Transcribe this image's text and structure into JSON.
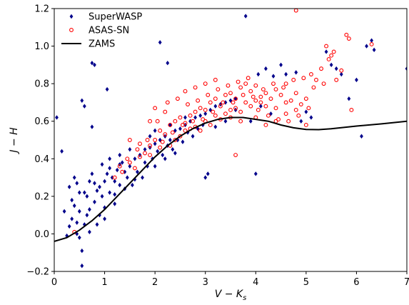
{
  "chart_data": {
    "type": "scatter",
    "title": "",
    "xlabel": "V − K",
    "xlabel_sub": "s",
    "ylabel": "J − H",
    "xlim": [
      0,
      7
    ],
    "ylim": [
      -0.2,
      1.2
    ],
    "grid": false,
    "legend_position": "top-left",
    "x_ticks": [
      0,
      1,
      2,
      3,
      4,
      5,
      6,
      7
    ],
    "x_tick_labels": [
      "0",
      "1",
      "2",
      "3",
      "4",
      "5",
      "6",
      "7"
    ],
    "y_ticks": [
      -0.2,
      0.0,
      0.2,
      0.4,
      0.6,
      0.8,
      1.0,
      1.2
    ],
    "y_tick_labels": [
      "−0.2",
      "0.0",
      "0.2",
      "0.4",
      "0.6",
      "0.8",
      "1.0",
      "1.2"
    ],
    "series": [
      {
        "name": "SuperWASP",
        "marker": "diamond",
        "color": "#00008b",
        "points": [
          [
            0.05,
            0.62
          ],
          [
            0.15,
            0.44
          ],
          [
            0.55,
            0.71
          ],
          [
            0.6,
            0.68
          ],
          [
            0.75,
            0.91
          ],
          [
            0.8,
            0.9
          ],
          [
            0.75,
            0.57
          ],
          [
            0.4,
            0.3
          ],
          [
            0.45,
            0.27
          ],
          [
            0.55,
            -0.17
          ],
          [
            0.45,
            0.0
          ],
          [
            0.2,
            0.12
          ],
          [
            0.3,
            0.25
          ],
          [
            0.35,
            0.18
          ],
          [
            0.5,
            -0.02
          ],
          [
            0.55,
            -0.09
          ],
          [
            0.6,
            0.05
          ],
          [
            0.65,
            0.1
          ],
          [
            0.7,
            0.13
          ],
          [
            0.8,
            0.17
          ],
          [
            0.85,
            0.23
          ],
          [
            0.9,
            0.25
          ],
          [
            1.0,
            0.28
          ],
          [
            1.05,
            0.32
          ],
          [
            1.1,
            0.35
          ],
          [
            1.15,
            0.3
          ],
          [
            1.2,
            0.21
          ],
          [
            1.25,
            0.34
          ],
          [
            1.3,
            0.37
          ],
          [
            1.35,
            0.38
          ],
          [
            1.4,
            0.33
          ],
          [
            1.5,
            0.36
          ],
          [
            1.6,
            0.4
          ],
          [
            1.7,
            0.42
          ],
          [
            1.8,
            0.45
          ],
          [
            1.9,
            0.46
          ],
          [
            2.0,
            0.48
          ],
          [
            2.1,
            0.5
          ],
          [
            2.2,
            0.52
          ],
          [
            2.3,
            0.5
          ],
          [
            2.4,
            0.55
          ],
          [
            2.5,
            0.56
          ],
          [
            2.6,
            0.58
          ],
          [
            2.7,
            0.6
          ],
          [
            2.8,
            0.62
          ],
          [
            2.9,
            0.63
          ],
          [
            3.0,
            0.64
          ],
          [
            3.1,
            0.66
          ],
          [
            3.2,
            0.68
          ],
          [
            3.3,
            0.69
          ],
          [
            3.4,
            0.7
          ],
          [
            3.5,
            0.71
          ],
          [
            3.6,
            0.72
          ],
          [
            3.8,
            1.16
          ],
          [
            3.0,
            0.3
          ],
          [
            3.05,
            0.32
          ],
          [
            4.0,
            0.32
          ],
          [
            4.05,
            0.85
          ],
          [
            4.2,
            0.88
          ],
          [
            4.35,
            0.84
          ],
          [
            4.5,
            0.9
          ],
          [
            4.6,
            0.85
          ],
          [
            4.8,
            0.86
          ],
          [
            4.9,
            0.6
          ],
          [
            5.0,
            0.65
          ],
          [
            5.1,
            0.62
          ],
          [
            5.4,
            0.97
          ],
          [
            5.5,
            0.9
          ],
          [
            5.6,
            0.88
          ],
          [
            5.7,
            0.85
          ],
          [
            5.85,
            0.72
          ],
          [
            6.0,
            0.82
          ],
          [
            6.2,
            1.0
          ],
          [
            6.3,
            1.03
          ],
          [
            6.35,
            0.98
          ],
          [
            6.1,
            0.52
          ],
          [
            7.0,
            0.88
          ],
          [
            1.05,
            0.77
          ],
          [
            2.1,
            1.02
          ],
          [
            2.25,
            0.91
          ],
          [
            0.35,
            0.08
          ],
          [
            0.4,
            0.15
          ],
          [
            0.65,
            0.2
          ],
          [
            0.75,
            0.32
          ],
          [
            0.9,
            0.1
          ],
          [
            0.95,
            0.2
          ],
          [
            1.0,
            0.14
          ],
          [
            1.1,
            0.22
          ],
          [
            1.2,
            0.28
          ],
          [
            1.3,
            0.26
          ],
          [
            1.45,
            0.3
          ],
          [
            1.55,
            0.26
          ],
          [
            1.65,
            0.33
          ],
          [
            1.75,
            0.3
          ],
          [
            1.85,
            0.36
          ],
          [
            1.95,
            0.4
          ],
          [
            2.05,
            0.44
          ],
          [
            2.15,
            0.42
          ],
          [
            2.25,
            0.47
          ],
          [
            2.35,
            0.45
          ],
          [
            2.45,
            0.5
          ],
          [
            2.55,
            0.49
          ],
          [
            2.65,
            0.54
          ],
          [
            2.75,
            0.52
          ],
          [
            2.85,
            0.56
          ],
          [
            2.95,
            0.58
          ],
          [
            3.2,
            0.57
          ],
          [
            3.4,
            0.6
          ],
          [
            1.5,
            0.45
          ],
          [
            1.3,
            0.42
          ],
          [
            1.1,
            0.4
          ],
          [
            0.95,
            0.37
          ],
          [
            0.8,
            0.27
          ],
          [
            0.6,
            0.22
          ],
          [
            0.5,
            0.12
          ],
          [
            0.45,
            0.06
          ],
          [
            0.3,
            0.04
          ],
          [
            0.25,
            -0.01
          ],
          [
            0.5,
            0.22
          ],
          [
            0.7,
            0.28
          ],
          [
            1.9,
            0.52
          ],
          [
            2.0,
            0.55
          ],
          [
            2.3,
            0.58
          ],
          [
            2.6,
            0.62
          ],
          [
            3.6,
            0.66
          ],
          [
            3.9,
            0.6
          ],
          [
            4.1,
            0.68
          ],
          [
            4.3,
            0.64
          ],
          [
            1.2,
            0.16
          ],
          [
            1.4,
            0.24
          ],
          [
            1.6,
            0.29
          ],
          [
            1.8,
            0.38
          ],
          [
            2.0,
            0.36
          ],
          [
            2.2,
            0.4
          ],
          [
            2.4,
            0.43
          ],
          [
            0.85,
            0.05
          ],
          [
            1.0,
            0.08
          ],
          [
            0.7,
            0.01
          ]
        ]
      },
      {
        "name": "ASAS-SN",
        "marker": "open-circle",
        "color": "#ff0000",
        "points": [
          [
            0.4,
            0.01
          ],
          [
            1.2,
            0.3
          ],
          [
            1.35,
            0.33
          ],
          [
            1.5,
            0.38
          ],
          [
            1.6,
            0.35
          ],
          [
            1.7,
            0.41
          ],
          [
            1.8,
            0.43
          ],
          [
            1.9,
            0.47
          ],
          [
            2.0,
            0.5
          ],
          [
            2.05,
            0.6
          ],
          [
            2.1,
            0.55
          ],
          [
            2.2,
            0.53
          ],
          [
            2.3,
            0.58
          ],
          [
            2.4,
            0.6
          ],
          [
            2.5,
            0.62
          ],
          [
            2.6,
            0.59
          ],
          [
            2.7,
            0.63
          ],
          [
            2.8,
            0.65
          ],
          [
            2.9,
            0.67
          ],
          [
            3.0,
            0.66
          ],
          [
            3.1,
            0.7
          ],
          [
            3.2,
            0.72
          ],
          [
            3.3,
            0.68
          ],
          [
            3.4,
            0.74
          ],
          [
            3.5,
            0.75
          ],
          [
            3.6,
            0.72
          ],
          [
            3.7,
            0.78
          ],
          [
            3.8,
            0.8
          ],
          [
            3.9,
            0.76
          ],
          [
            4.0,
            0.79
          ],
          [
            4.1,
            0.73
          ],
          [
            4.2,
            0.75
          ],
          [
            4.3,
            0.72
          ],
          [
            4.4,
            0.77
          ],
          [
            4.5,
            0.74
          ],
          [
            4.6,
            0.8
          ],
          [
            4.7,
            0.71
          ],
          [
            4.8,
            0.75
          ],
          [
            4.9,
            0.69
          ],
          [
            5.0,
            0.72
          ],
          [
            5.1,
            0.85
          ],
          [
            5.2,
            0.82
          ],
          [
            5.3,
            0.88
          ],
          [
            5.4,
            1.0
          ],
          [
            5.5,
            0.95
          ],
          [
            5.6,
            0.82
          ],
          [
            5.7,
            0.87
          ],
          [
            5.8,
            1.06
          ],
          [
            5.85,
            1.04
          ],
          [
            5.9,
            0.66
          ],
          [
            6.3,
            1.01
          ],
          [
            4.8,
            1.19
          ],
          [
            3.6,
            0.42
          ],
          [
            1.9,
            0.6
          ],
          [
            2.6,
            0.76
          ],
          [
            2.8,
            0.78
          ],
          [
            3.0,
            0.8
          ],
          [
            3.2,
            0.82
          ],
          [
            3.5,
            0.62
          ],
          [
            3.7,
            0.6
          ],
          [
            4.0,
            0.62
          ],
          [
            4.2,
            0.58
          ],
          [
            4.4,
            0.6
          ],
          [
            4.6,
            0.64
          ],
          [
            4.8,
            0.66
          ],
          [
            5.0,
            0.58
          ],
          [
            1.5,
            0.5
          ],
          [
            1.7,
            0.48
          ],
          [
            2.2,
            0.65
          ],
          [
            2.4,
            0.5
          ],
          [
            2.6,
            0.55
          ],
          [
            2.8,
            0.57
          ],
          [
            3.0,
            0.6
          ],
          [
            3.2,
            0.63
          ],
          [
            3.4,
            0.64
          ],
          [
            3.6,
            0.67
          ],
          [
            3.8,
            0.7
          ],
          [
            4.0,
            0.71
          ],
          [
            4.2,
            0.68
          ],
          [
            4.4,
            0.67
          ],
          [
            4.6,
            0.7
          ],
          [
            1.3,
            0.36
          ],
          [
            1.45,
            0.4
          ],
          [
            1.65,
            0.45
          ],
          [
            1.85,
            0.5
          ],
          [
            2.15,
            0.49
          ],
          [
            2.35,
            0.54
          ],
          [
            2.55,
            0.58
          ],
          [
            2.75,
            0.6
          ],
          [
            2.95,
            0.61
          ],
          [
            3.15,
            0.65
          ],
          [
            3.35,
            0.7
          ],
          [
            3.55,
            0.7
          ],
          [
            3.75,
            0.74
          ],
          [
            3.95,
            0.73
          ],
          [
            4.15,
            0.77
          ],
          [
            4.35,
            0.8
          ],
          [
            4.55,
            0.78
          ],
          [
            4.75,
            0.82
          ],
          [
            4.95,
            0.83
          ],
          [
            5.15,
            0.78
          ],
          [
            5.35,
            0.8
          ],
          [
            2.0,
            0.67
          ],
          [
            2.25,
            0.7
          ],
          [
            2.45,
            0.72
          ],
          [
            2.65,
            0.69
          ],
          [
            2.85,
            0.71
          ],
          [
            3.05,
            0.74
          ],
          [
            3.25,
            0.77
          ],
          [
            3.45,
            0.79
          ],
          [
            3.65,
            0.81
          ],
          [
            3.85,
            0.83
          ],
          [
            4.05,
            0.66
          ],
          [
            4.25,
            0.63
          ],
          [
            4.45,
            0.61
          ],
          [
            4.65,
            0.6
          ],
          [
            4.85,
            0.63
          ],
          [
            5.05,
            0.67
          ],
          [
            1.9,
            0.42
          ],
          [
            2.1,
            0.46
          ],
          [
            2.3,
            0.47
          ],
          [
            2.5,
            0.52
          ],
          [
            2.7,
            0.56
          ],
          [
            2.9,
            0.55
          ],
          [
            3.1,
            0.58
          ],
          [
            3.3,
            0.61
          ],
          [
            3.5,
            0.66
          ],
          [
            3.7,
            0.65
          ],
          [
            3.9,
            0.68
          ],
          [
            4.1,
            0.7
          ],
          [
            5.45,
            0.93
          ],
          [
            5.55,
            0.97
          ]
        ]
      }
    ],
    "lines": [
      {
        "name": "ZAMS",
        "color": "#000000",
        "points": [
          [
            0.0,
            -0.04
          ],
          [
            0.25,
            -0.02
          ],
          [
            0.5,
            0.02
          ],
          [
            0.75,
            0.07
          ],
          [
            1.0,
            0.13
          ],
          [
            1.25,
            0.2
          ],
          [
            1.5,
            0.27
          ],
          [
            1.75,
            0.34
          ],
          [
            2.0,
            0.41
          ],
          [
            2.25,
            0.47
          ],
          [
            2.5,
            0.52
          ],
          [
            2.75,
            0.56
          ],
          [
            3.0,
            0.59
          ],
          [
            3.25,
            0.61
          ],
          [
            3.5,
            0.62
          ],
          [
            3.75,
            0.62
          ],
          [
            4.0,
            0.61
          ],
          [
            4.25,
            0.6
          ],
          [
            4.5,
            0.58
          ],
          [
            4.75,
            0.565
          ],
          [
            5.0,
            0.556
          ],
          [
            5.25,
            0.555
          ],
          [
            5.5,
            0.56
          ],
          [
            6.0,
            0.574
          ],
          [
            6.5,
            0.586
          ],
          [
            7.0,
            0.6
          ]
        ]
      }
    ],
    "legend": [
      {
        "label": "SuperWASP",
        "marker": "diamond",
        "color": "#00008b"
      },
      {
        "label": "ASAS-SN",
        "marker": "open-circle",
        "color": "#ff0000"
      },
      {
        "label": "ZAMS",
        "marker": "line",
        "color": "#000000"
      }
    ]
  }
}
